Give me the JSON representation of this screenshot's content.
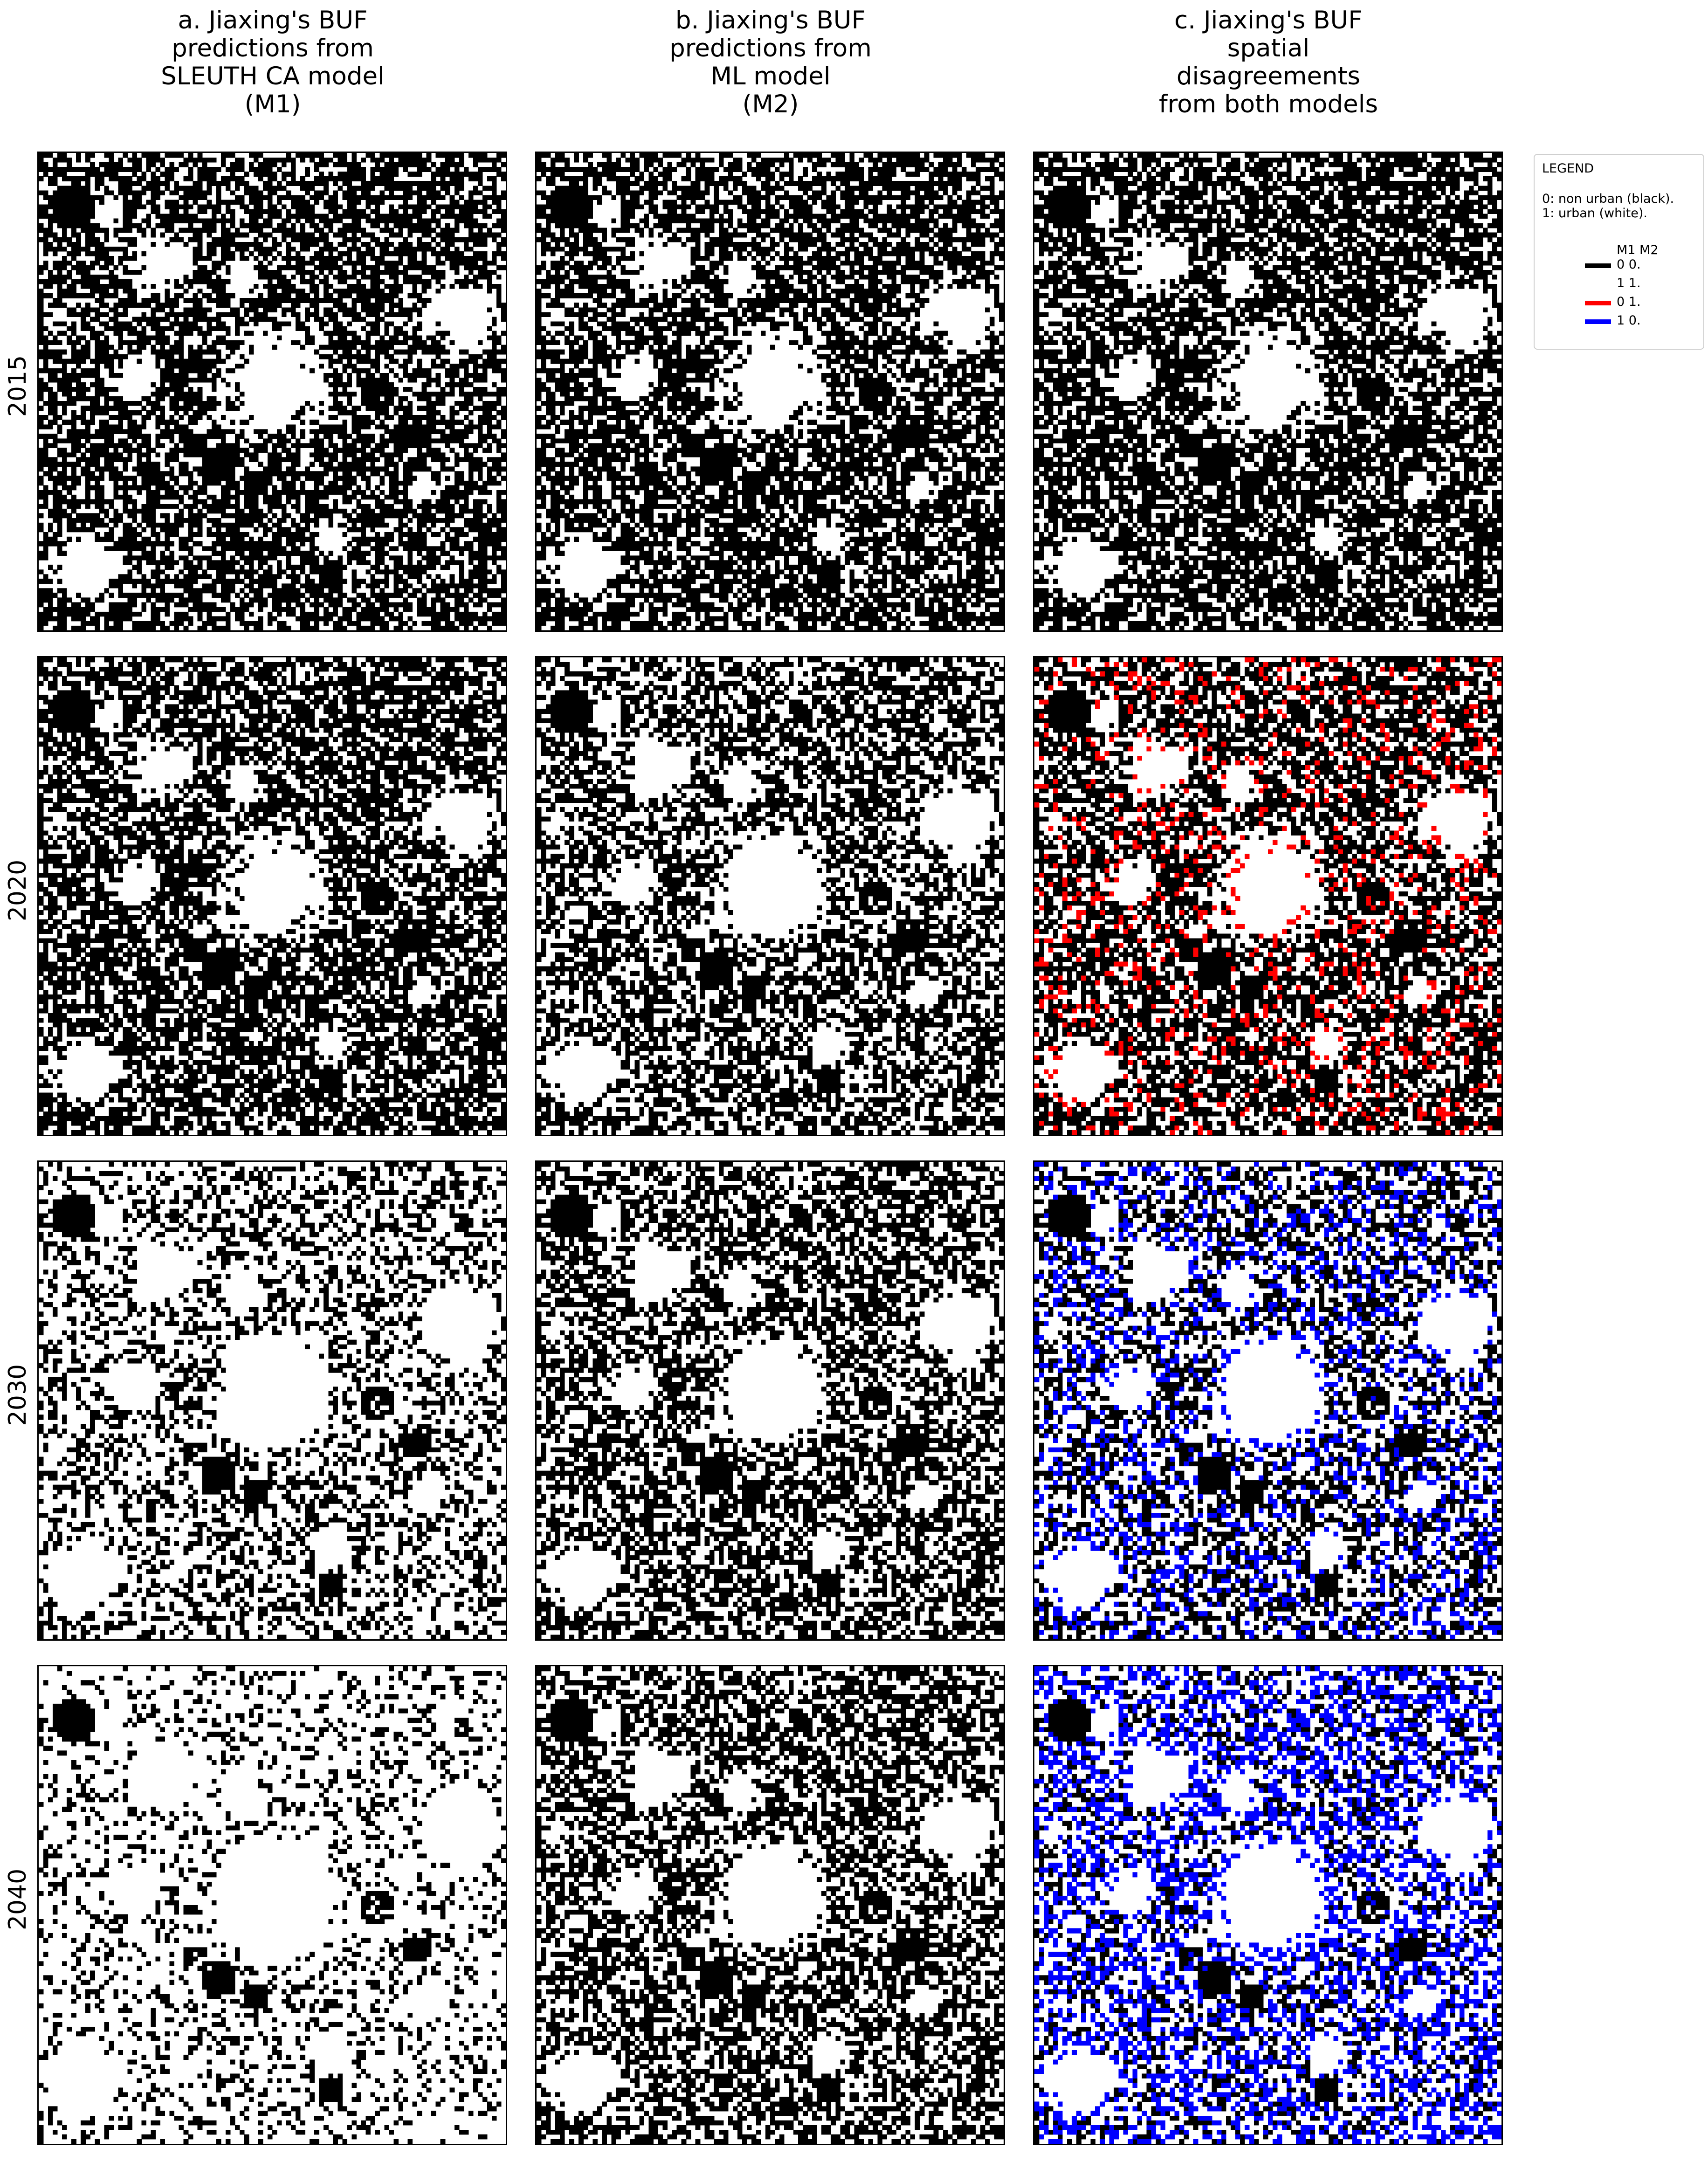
{
  "columns": [
    {
      "id": "a",
      "title_lines": [
        "a. Jiaxing's BUF",
        "predictions from",
        "SLEUTH CA model",
        "(M1)"
      ]
    },
    {
      "id": "b",
      "title_lines": [
        "b. Jiaxing's BUF",
        "predictions from",
        "ML model",
        "(M2)"
      ]
    },
    {
      "id": "c",
      "title_lines": [
        "c. Jiaxing's BUF",
        "spatial",
        "disagreements",
        "from both models"
      ]
    }
  ],
  "rows": [
    {
      "year": "2015",
      "m1_urban_share": 0.4,
      "m2_urban_share": 0.4,
      "red_share": 0.0,
      "blue_share": 0.0
    },
    {
      "year": "2020",
      "m1_urban_share": 0.42,
      "m2_urban_share": 0.52,
      "red_share": 0.1,
      "blue_share": 0.0
    },
    {
      "year": "2030",
      "m1_urban_share": 0.68,
      "m2_urban_share": 0.52,
      "red_share": 0.06,
      "blue_share": 0.22
    },
    {
      "year": "2040",
      "m1_urban_share": 0.8,
      "m2_urban_share": 0.52,
      "red_share": 0.05,
      "blue_share": 0.33
    }
  ],
  "legend": {
    "title": "LEGEND",
    "notes": [
      "0: non urban (black).",
      "1: urban (white)."
    ],
    "header": "M1 M2",
    "entries": [
      {
        "label": "0  0.",
        "color": "#000000"
      },
      {
        "label": "1  1.",
        "color": "#ffffff"
      },
      {
        "label": "0  1.",
        "color": "#ff0000"
      },
      {
        "label": "1  0.",
        "color": "#0000ff"
      }
    ]
  },
  "colors": {
    "non_urban": "#000000",
    "urban": "#ffffff",
    "m1_0_m2_1": "#ff0000",
    "m1_1_m2_0": "#0000ff"
  }
}
